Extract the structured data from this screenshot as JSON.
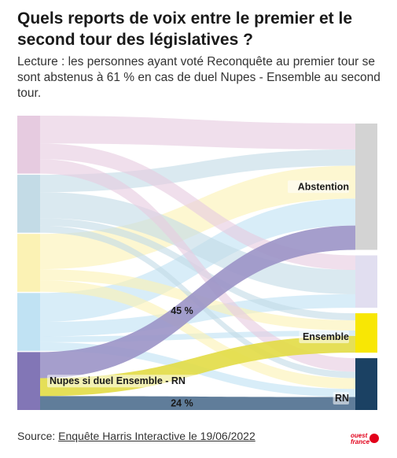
{
  "header": {
    "title": "Quels reports de voix entre le premier et le second tour des législatives ?",
    "subtitle": "Lecture : les personnes ayant voté Reconquête au premier tour se sont abstenus à 61 % en cas de duel Nupes - Ensemble au second tour."
  },
  "chart_data": {
    "type": "sankey",
    "title": "Quels reports de voix entre le premier et le second tour des législatives ?",
    "sources": [
      {
        "label": "",
        "color": "#e6cbe0"
      },
      {
        "label": "",
        "color": "#c3dbe6"
      },
      {
        "label": "",
        "color": "#fbf2b4"
      },
      {
        "label": "",
        "color": "#c0e2f3"
      },
      {
        "label": "Nupes si duel Ensemble - RN",
        "color": "#8276b6"
      }
    ],
    "targets": [
      {
        "label": "Abstention",
        "color": "#d3d3d3"
      },
      {
        "label": "",
        "color": "#e1def0"
      },
      {
        "label": "Ensemble",
        "color": "#f8e704"
      },
      {
        "label": "RN",
        "color": "#1b4163"
      }
    ],
    "links": [
      {
        "source": 0,
        "target": 0,
        "value": 48
      },
      {
        "source": 0,
        "target": 1,
        "value": 27
      },
      {
        "source": 0,
        "target": 3,
        "value": 25
      },
      {
        "source": 1,
        "target": 0,
        "value": 30
      },
      {
        "source": 1,
        "target": 1,
        "value": 45
      },
      {
        "source": 1,
        "target": 2,
        "value": 13
      },
      {
        "source": 1,
        "target": 3,
        "value": 12
      },
      {
        "source": 2,
        "target": 0,
        "value": 61
      },
      {
        "source": 2,
        "target": 2,
        "value": 19
      },
      {
        "source": 2,
        "target": 3,
        "value": 20
      },
      {
        "source": 3,
        "target": 0,
        "value": 50
      },
      {
        "source": 3,
        "target": 1,
        "value": 25
      },
      {
        "source": 3,
        "target": 2,
        "value": 10
      },
      {
        "source": 3,
        "target": 3,
        "value": 15
      },
      {
        "source": 4,
        "target": 0,
        "value": 45
      },
      {
        "source": 4,
        "target": 2,
        "value": 31
      },
      {
        "source": 4,
        "target": 3,
        "value": 24
      }
    ],
    "annotations": [
      {
        "text": "45 %",
        "link": 14
      },
      {
        "text": "24 %",
        "link": 16
      }
    ]
  },
  "footer": {
    "source_prefix": "Source: ",
    "source_link": "Enquête Harris Interactive le 19/06/2022",
    "logo_line1": "ouest",
    "logo_line2": "france"
  },
  "colors": {
    "link_highlight_abstention": "#9b93c7",
    "link_highlight_ensemble": "#e2dc45",
    "link_highlight_rn": "#4f6f8f",
    "logo": "#e2001a"
  }
}
